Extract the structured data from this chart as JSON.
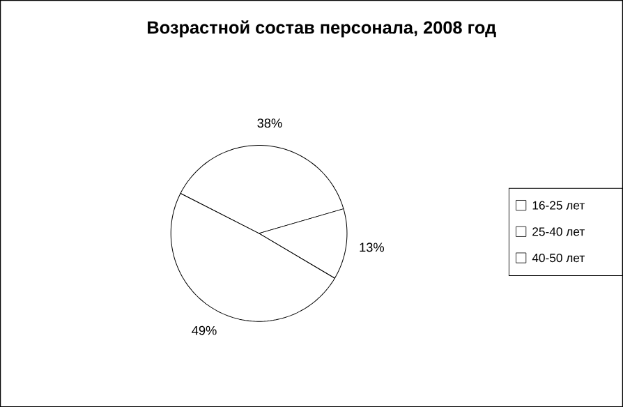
{
  "chart_data": {
    "type": "pie",
    "title": "Возрастной состав персонала, 2008 год",
    "categories": [
      "16-25 лет",
      "25-40 лет",
      "40-50 лет"
    ],
    "values": [
      38,
      13,
      49
    ],
    "colors": [
      "#ffffff",
      "#ffffff",
      "#ffffff"
    ],
    "value_labels": [
      "38%",
      "13%",
      "49%"
    ],
    "legend": "right"
  }
}
